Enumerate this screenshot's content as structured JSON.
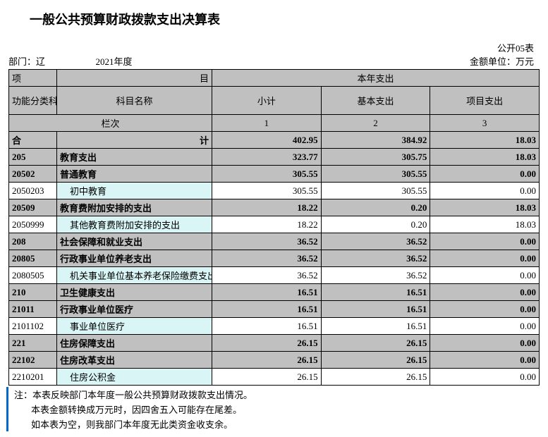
{
  "title": "一般公共预算财政拨款支出决算表",
  "form_no": "公开05表",
  "dept_label": "部门：辽",
  "year": "2021年度",
  "unit": "金额单位：万元",
  "headers": {
    "project": "项",
    "mu": "目",
    "this_year": "本年支出",
    "func_code": "功能分类科目编码",
    "subject_name": "科目名称",
    "subtotal": "小计",
    "basic": "基本支出",
    "project_exp": "项目支出",
    "lanci": "栏次",
    "c1": "1",
    "c2": "2",
    "c3": "3",
    "total_label_l": "合",
    "total_label_r": "计"
  },
  "total": {
    "subtotal": "402.95",
    "basic": "384.92",
    "project": "18.03"
  },
  "rows": [
    {
      "code": "205",
      "name": "教育支出",
      "s": "323.77",
      "b": "305.75",
      "p": "18.03",
      "level": 0,
      "shade": true
    },
    {
      "code": "20502",
      "name": "普通教育",
      "s": "305.55",
      "b": "305.55",
      "p": "0.00",
      "level": 0,
      "shade": true
    },
    {
      "code": "2050203",
      "name": "初中教育",
      "s": "305.55",
      "b": "305.55",
      "p": "0.00",
      "level": 1,
      "shade": false
    },
    {
      "code": "20509",
      "name": "教育费附加安排的支出",
      "s": "18.22",
      "b": "0.20",
      "p": "18.03",
      "level": 0,
      "shade": true
    },
    {
      "code": "2050999",
      "name": "其他教育费附加安排的支出",
      "s": "18.22",
      "b": "0.20",
      "p": "18.03",
      "level": 1,
      "shade": false
    },
    {
      "code": "208",
      "name": "社会保障和就业支出",
      "s": "36.52",
      "b": "36.52",
      "p": "0.00",
      "level": 0,
      "shade": true
    },
    {
      "code": "20805",
      "name": "行政事业单位养老支出",
      "s": "36.52",
      "b": "36.52",
      "p": "0.00",
      "level": 0,
      "shade": true
    },
    {
      "code": "2080505",
      "name": "机关事业单位基本养老保险缴费支出",
      "s": "36.52",
      "b": "36.52",
      "p": "0.00",
      "level": 1,
      "shade": false
    },
    {
      "code": "210",
      "name": "卫生健康支出",
      "s": "16.51",
      "b": "16.51",
      "p": "0.00",
      "level": 0,
      "shade": true
    },
    {
      "code": "21011",
      "name": "行政事业单位医疗",
      "s": "16.51",
      "b": "16.51",
      "p": "0.00",
      "level": 0,
      "shade": true
    },
    {
      "code": "2101102",
      "name": "事业单位医疗",
      "s": "16.51",
      "b": "16.51",
      "p": "0.00",
      "level": 1,
      "shade": false
    },
    {
      "code": "221",
      "name": "住房保障支出",
      "s": "26.15",
      "b": "26.15",
      "p": "0.00",
      "level": 0,
      "shade": true
    },
    {
      "code": "22102",
      "name": "住房改革支出",
      "s": "26.15",
      "b": "26.15",
      "p": "0.00",
      "level": 0,
      "shade": true
    },
    {
      "code": "2210201",
      "name": "住房公积金",
      "s": "26.15",
      "b": "26.15",
      "p": "0.00",
      "level": 1,
      "shade": false
    }
  ],
  "notes": [
    "注：本表反映部门本年度一般公共预算财政拨款支出情况。",
    "本表金额转换成万元时，因四舍五入可能存在尾差。",
    "如本表为空，则我部门本年度无此类资金收支余。"
  ]
}
